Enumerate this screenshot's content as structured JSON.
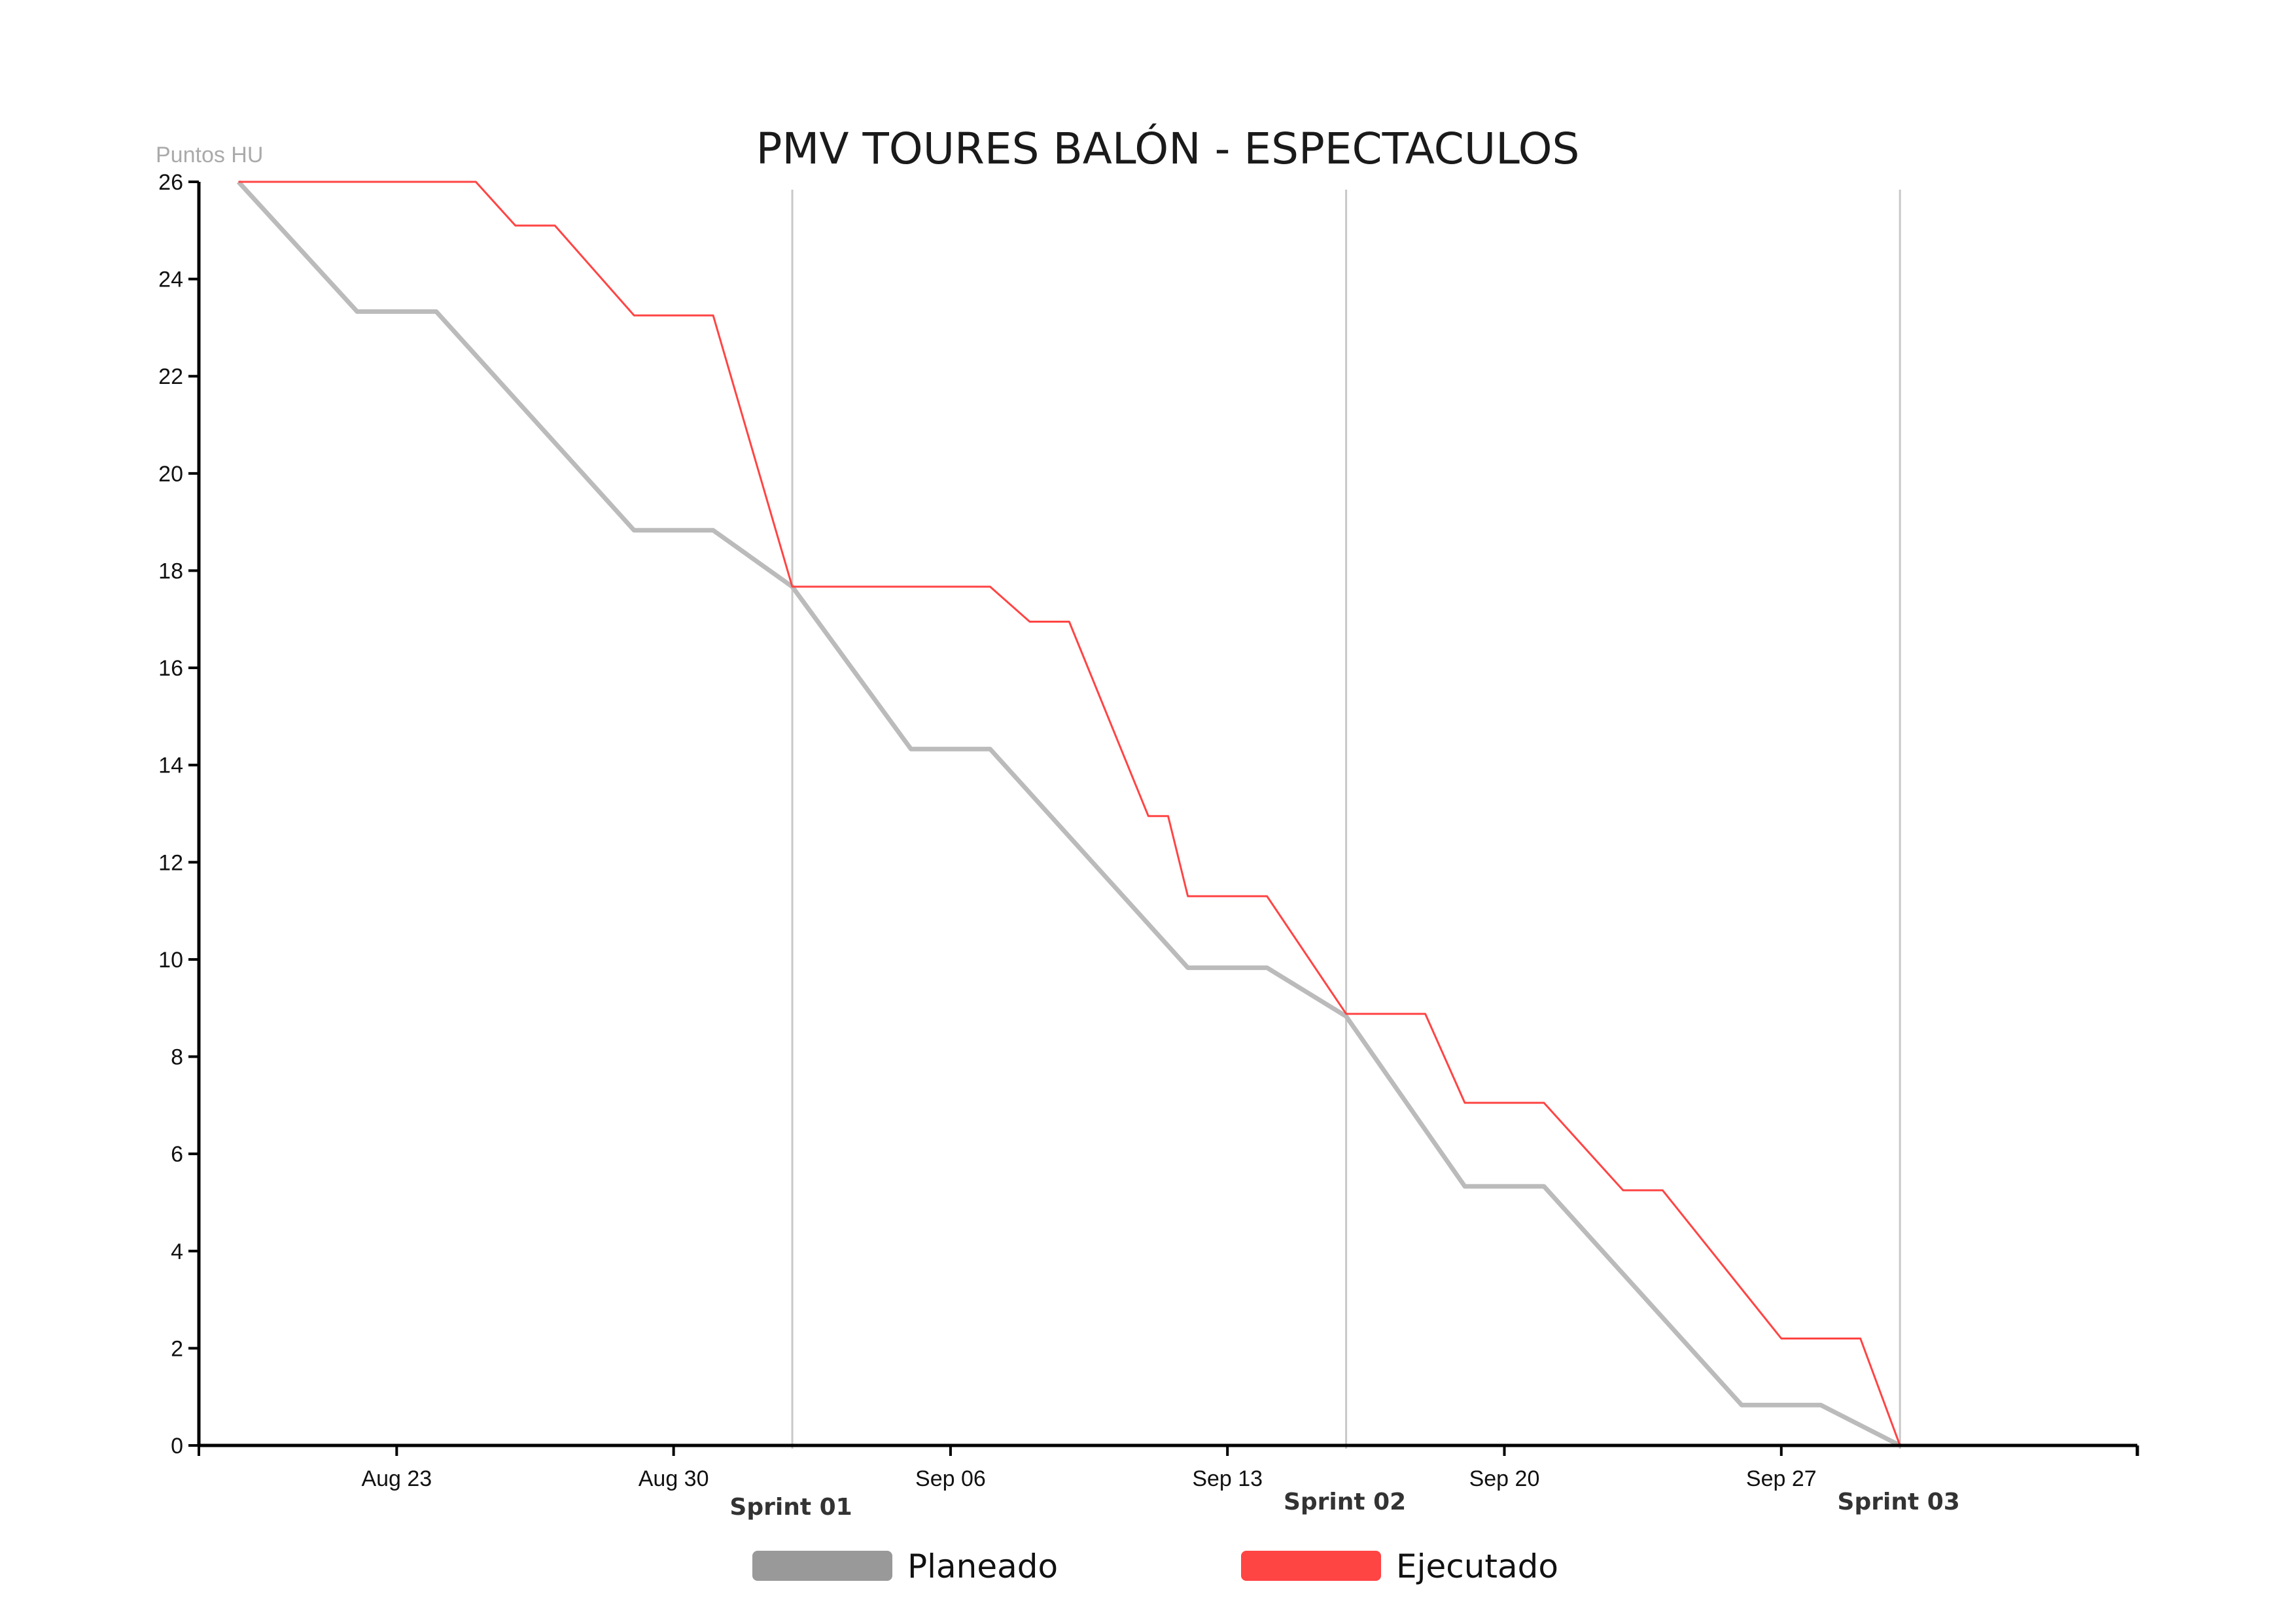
{
  "chart_data": {
    "type": "line",
    "title": "PMV TOURES BALÓN - ESPECTACULOS",
    "ylabel": "Puntos HU",
    "ylim": [
      0,
      26
    ],
    "y_ticks": [
      0,
      2,
      4,
      6,
      8,
      10,
      12,
      14,
      16,
      18,
      20,
      22,
      24,
      26
    ],
    "x_range": [
      "2021-08-18",
      "2021-10-06"
    ],
    "x_ticks": [
      {
        "date": "2021-08-23",
        "label": "Aug 23"
      },
      {
        "date": "2021-08-30",
        "label": "Aug 30"
      },
      {
        "date": "2021-09-06",
        "label": "Sep 06"
      },
      {
        "date": "2021-09-13",
        "label": "Sep 13"
      },
      {
        "date": "2021-09-20",
        "label": "Sep 20"
      },
      {
        "date": "2021-09-27",
        "label": "Sep 27"
      }
    ],
    "sprints": [
      {
        "date": "2021-09-02",
        "label": "Sprint 01"
      },
      {
        "date": "2021-09-16",
        "label": "Sprint 02"
      },
      {
        "date": "2021-09-30",
        "label": "Sprint 03"
      }
    ],
    "series": [
      {
        "name": "Planeado",
        "color": "#bbbbbb",
        "legend_color": "#999999",
        "points": [
          [
            "2021-08-19",
            26
          ],
          [
            "2021-08-22",
            23.33
          ],
          [
            "2021-08-24",
            23.33
          ],
          [
            "2021-08-29",
            18.83
          ],
          [
            "2021-08-31",
            18.83
          ],
          [
            "2021-09-02",
            17.67
          ],
          [
            "2021-09-05",
            14.33
          ],
          [
            "2021-09-07",
            14.33
          ],
          [
            "2021-09-12",
            9.83
          ],
          [
            "2021-09-14",
            9.83
          ],
          [
            "2021-09-16",
            8.83
          ],
          [
            "2021-09-19",
            5.33
          ],
          [
            "2021-09-21",
            5.33
          ],
          [
            "2021-09-26",
            0.83
          ],
          [
            "2021-09-28",
            0.83
          ],
          [
            "2021-09-30",
            0
          ]
        ]
      },
      {
        "name": "Ejecutado",
        "color": "#ff4444",
        "legend_color": "#ff4444",
        "points": [
          [
            "2021-08-19",
            26
          ],
          [
            "2021-08-25",
            26
          ],
          [
            "2021-08-26",
            25.1
          ],
          [
            "2021-08-27",
            25.1
          ],
          [
            "2021-08-29",
            23.25
          ],
          [
            "2021-08-31",
            23.25
          ],
          [
            "2021-09-02",
            17.67
          ],
          [
            "2021-09-07",
            17.67
          ],
          [
            "2021-09-08",
            16.95
          ],
          [
            "2021-09-09",
            16.95
          ],
          [
            "2021-09-11",
            12.95
          ],
          [
            "2021-09-11T12:00:00",
            12.95
          ],
          [
            "2021-09-12",
            11.3
          ],
          [
            "2021-09-14",
            11.3
          ],
          [
            "2021-09-16",
            8.88
          ],
          [
            "2021-09-18",
            8.88
          ],
          [
            "2021-09-19",
            7.05
          ],
          [
            "2021-09-21",
            7.05
          ],
          [
            "2021-09-23",
            5.25
          ],
          [
            "2021-09-24",
            5.25
          ],
          [
            "2021-09-27",
            2.2
          ],
          [
            "2021-09-29",
            2.2
          ],
          [
            "2021-09-30",
            0
          ]
        ]
      }
    ]
  }
}
